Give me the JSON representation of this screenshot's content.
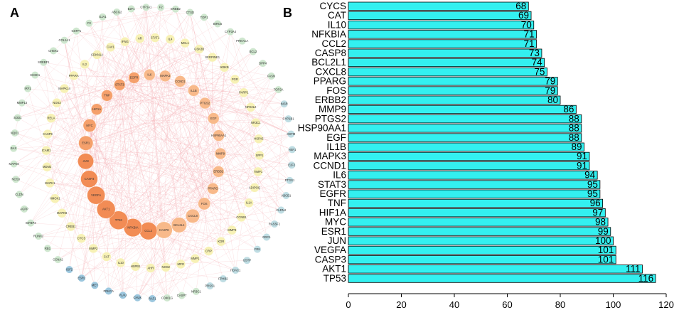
{
  "panel_a": {
    "label": "A",
    "network": {
      "outer_ring": [
        "CYP1A1",
        "F2",
        "ERBB2",
        "CTSD",
        "TOP1",
        "BIRC5",
        "CYP3A4",
        "PRKACA",
        "BCL2",
        "DPP4",
        "FASN",
        "TOP2A",
        "INSR",
        "CYP1B1",
        "GSTM",
        "HSF1",
        "E2F2",
        "PTGS1",
        "ABCB1",
        "CLDN4",
        "RASSF1",
        "ODC1",
        "FRK",
        "GSTP",
        "HDAC1",
        "FPHB2",
        "PRSS1",
        "NR3C1",
        "CASP7",
        "CD40LG",
        "RAF1",
        "CHUK",
        "PLAU",
        "PRKCA",
        "MET",
        "ESR2",
        "IGF2",
        "CCNA2",
        "RB1",
        "RUNX2",
        "IGFBP3",
        "AGPP",
        "CLDN",
        "NOS3",
        "MAPK8",
        "BAX",
        "NQO1",
        "SOD1",
        "MMP13",
        "IRF1",
        "CHEK1",
        "SREBF1",
        "CHEK2",
        "COL1A1",
        "GSTP1",
        "F3",
        "GJA1",
        "ABCG2",
        "E2F1"
      ],
      "middle_ring": [
        "STAT1",
        "IL4",
        "MCL1",
        "GSK3B",
        "SERPINE1",
        "IKBKB",
        "PGR",
        "PARP1",
        "NFE2L2",
        "NR3C1",
        "HSPA5",
        "SPP1",
        "TIMP1",
        "ADIPOQ",
        "IL1A",
        "CCNB1",
        "MMP3",
        "KDR",
        "CRP",
        "MMP1",
        "MPO",
        "NOS2",
        "AHR",
        "HSPB1",
        "IL10",
        "CAT",
        "MMP2",
        "CYCS",
        "CREB1",
        "MAPK8",
        "HMOX1",
        "MAPK1",
        "MDM2",
        "ICAM1",
        "CASP9",
        "RELA",
        "NOS3",
        "MAPK14",
        "PPARA",
        "IL2",
        "CDKN1A",
        "CAV1",
        "IFNG",
        "AR"
      ],
      "inner_ring": [
        "IL6",
        "MAPK3",
        "CCND1",
        "IL1B",
        "PTGS2",
        "EGF",
        "HSP90AA1",
        "MMP9",
        "ERBB2",
        "PPARG",
        "FOS",
        "CXCL8",
        "BCL2L1",
        "CASP8",
        "CCL2",
        "NFKBIA",
        "TP53",
        "AKT1",
        "VEGFA",
        "CASP3",
        "JUN",
        "ESR1",
        "MYC",
        "HIF1A",
        "TNF",
        "STAT3",
        "EGFR"
      ]
    }
  },
  "panel_b": {
    "label": "B"
  },
  "chart_data": {
    "type": "bar",
    "orientation": "horizontal",
    "title": "",
    "xlabel": "",
    "ylabel": "",
    "xlim": [
      0,
      120
    ],
    "xticks": [
      0,
      20,
      40,
      60,
      80,
      100,
      120
    ],
    "bar_color": "#33f0f0",
    "categories": [
      "CYCS",
      "CAT",
      "IL10",
      "NFKBIA",
      "CCL2",
      "CASP8",
      "BCL2L1",
      "CXCL8",
      "PPARG",
      "FOS",
      "ERBB2",
      "MMP9",
      "PTGS2",
      "HSP90AA1",
      "EGF",
      "IL1B",
      "MAPK3",
      "CCND1",
      "IL6",
      "STAT3",
      "EGFR",
      "TNF",
      "HIF1A",
      "MYC",
      "ESR1",
      "JUN",
      "VEGFA",
      "CASP3",
      "AKT1",
      "TP53"
    ],
    "values": [
      68,
      69,
      70,
      71,
      71,
      73,
      74,
      75,
      79,
      79,
      80,
      86,
      88,
      88,
      88,
      89,
      91,
      91,
      94,
      95,
      95,
      96,
      97,
      98,
      99,
      100,
      101,
      101,
      111,
      116
    ]
  }
}
